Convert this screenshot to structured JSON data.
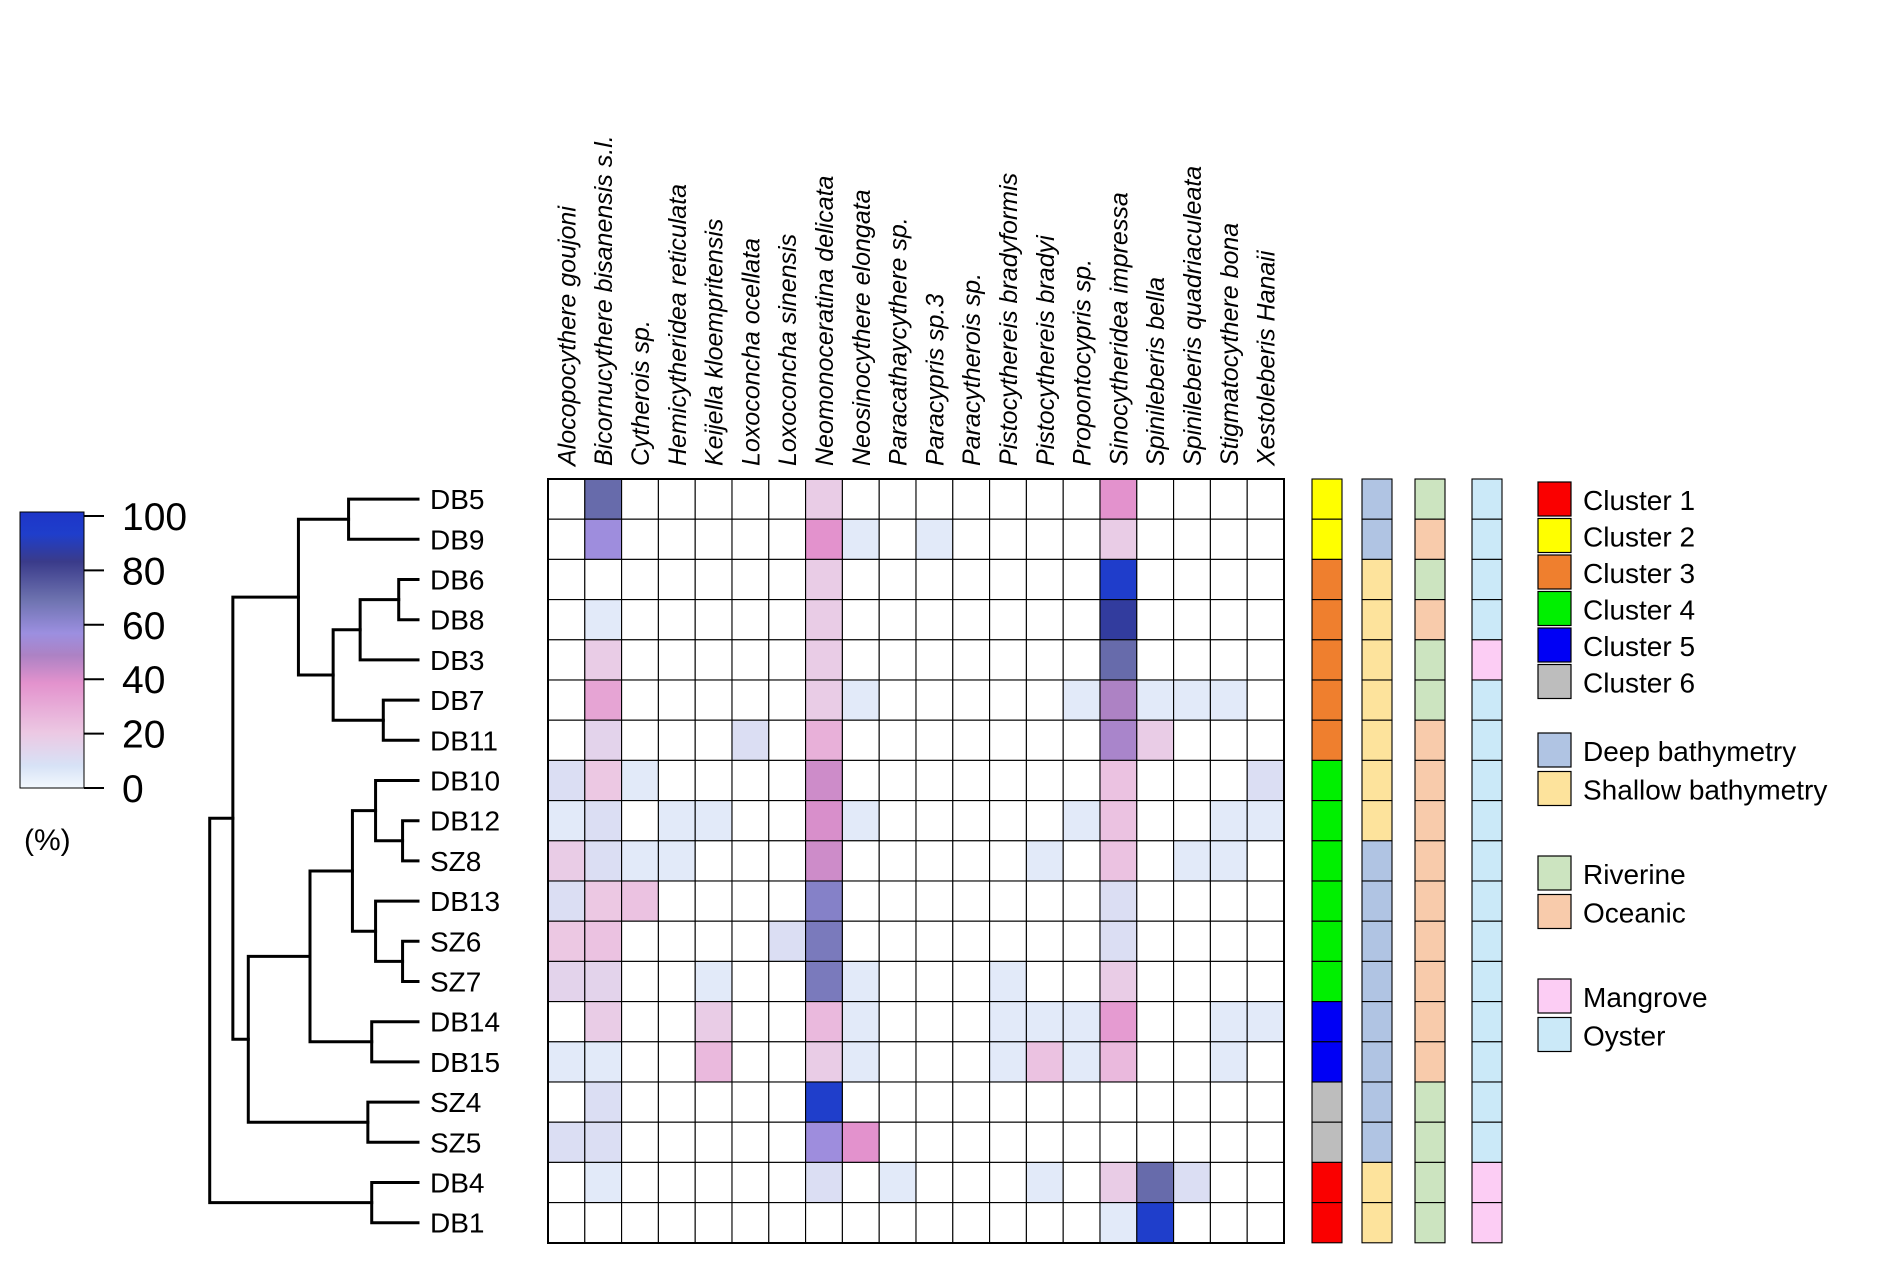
{
  "chart_data": {
    "type": "heatmap",
    "title": "",
    "columns": [
      "Alocopocythere goujoni",
      "Bicornucythere bisanensis s.l.",
      "Cytherois sp.",
      "Hemicytherideа reticulata",
      "Keijella kloempritensis",
      "Loxoconcha ocellata",
      "Loxoconcha sinensis",
      "Neomonoceratina delicata",
      "Neosinocythere elongata",
      "Paracathaycythere sp.",
      "Paracypris sp.3",
      "Paracytherois sp.",
      "Pistocythereis bradyformis",
      "Pistocythereis bradyi",
      "Propontocypris sp.",
      "Sinocytheridea impressa",
      "Spinileberis bella",
      "Spinileberis quadriaculeata",
      "Stigmatocythere bona",
      "Xestoleberis Hanaii"
    ],
    "rows": [
      "DB5",
      "DB9",
      "DB6",
      "DB8",
      "DB3",
      "DB7",
      "DB11",
      "DB10",
      "DB12",
      "SZ8",
      "DB13",
      "SZ6",
      "SZ7",
      "DB14",
      "DB15",
      "SZ4",
      "SZ5",
      "DB4",
      "DB1"
    ],
    "values": [
      [
        0,
        70,
        0,
        0,
        0,
        0,
        0,
        18,
        0,
        0,
        0,
        0,
        0,
        0,
        0,
        38,
        0,
        0,
        0,
        0
      ],
      [
        0,
        55,
        0,
        0,
        0,
        0,
        0,
        38,
        5,
        0,
        5,
        0,
        0,
        0,
        0,
        18,
        0,
        0,
        0,
        0
      ],
      [
        0,
        0,
        0,
        0,
        0,
        0,
        0,
        18,
        0,
        0,
        0,
        0,
        0,
        0,
        0,
        93,
        0,
        0,
        0,
        0
      ],
      [
        0,
        5,
        0,
        0,
        0,
        0,
        0,
        18,
        0,
        0,
        0,
        0,
        0,
        0,
        0,
        85,
        0,
        0,
        0,
        0
      ],
      [
        0,
        18,
        0,
        0,
        0,
        0,
        0,
        18,
        0,
        0,
        0,
        0,
        0,
        0,
        0,
        70,
        0,
        0,
        0,
        0
      ],
      [
        0,
        32,
        0,
        0,
        0,
        0,
        0,
        18,
        5,
        0,
        0,
        0,
        0,
        0,
        5,
        48,
        5,
        5,
        5,
        0
      ],
      [
        0,
        15,
        0,
        0,
        0,
        10,
        0,
        28,
        0,
        0,
        0,
        0,
        0,
        0,
        0,
        50,
        18,
        0,
        0,
        0
      ],
      [
        10,
        20,
        5,
        0,
        0,
        0,
        0,
        42,
        0,
        0,
        0,
        0,
        0,
        0,
        0,
        22,
        0,
        0,
        0,
        10
      ],
      [
        5,
        10,
        0,
        5,
        5,
        0,
        0,
        40,
        5,
        0,
        0,
        0,
        0,
        0,
        5,
        22,
        0,
        0,
        5,
        5
      ],
      [
        18,
        10,
        5,
        5,
        0,
        0,
        0,
        42,
        0,
        0,
        0,
        0,
        0,
        5,
        0,
        22,
        0,
        5,
        5,
        0
      ],
      [
        10,
        20,
        22,
        0,
        0,
        0,
        0,
        62,
        0,
        0,
        0,
        0,
        0,
        0,
        0,
        10,
        0,
        0,
        0,
        0
      ],
      [
        20,
        22,
        0,
        0,
        0,
        0,
        10,
        65,
        0,
        0,
        0,
        0,
        0,
        0,
        0,
        10,
        0,
        0,
        0,
        0
      ],
      [
        15,
        15,
        0,
        0,
        5,
        0,
        0,
        65,
        5,
        0,
        0,
        0,
        5,
        0,
        0,
        18,
        0,
        0,
        0,
        0
      ],
      [
        0,
        18,
        0,
        0,
        18,
        0,
        0,
        25,
        5,
        0,
        0,
        0,
        5,
        5,
        5,
        35,
        0,
        0,
        5,
        5
      ],
      [
        5,
        5,
        0,
        0,
        25,
        0,
        0,
        18,
        5,
        0,
        0,
        0,
        5,
        22,
        5,
        25,
        0,
        0,
        5,
        0
      ],
      [
        0,
        10,
        0,
        0,
        0,
        0,
        0,
        92,
        0,
        0,
        0,
        0,
        0,
        0,
        0,
        0,
        0,
        0,
        0,
        0
      ],
      [
        10,
        10,
        0,
        0,
        0,
        0,
        0,
        55,
        38,
        0,
        0,
        0,
        0,
        0,
        0,
        0,
        0,
        0,
        0,
        0
      ],
      [
        0,
        5,
        0,
        0,
        0,
        0,
        0,
        10,
        0,
        5,
        0,
        0,
        0,
        5,
        0,
        18,
        70,
        10,
        0,
        0
      ],
      [
        0,
        0,
        0,
        0,
        0,
        0,
        0,
        0,
        0,
        0,
        0,
        0,
        0,
        0,
        0,
        5,
        92,
        0,
        0,
        0
      ]
    ],
    "color_scale": {
      "min": 0,
      "max": 100,
      "ticks": [
        "0",
        "20",
        "40",
        "60",
        "80",
        "100"
      ],
      "unit": "(%)",
      "stops": [
        {
          "v": 0,
          "c": "#f3f8fe"
        },
        {
          "v": 8,
          "c": "#d7e2f6"
        },
        {
          "v": 20,
          "c": "#ecc8e3"
        },
        {
          "v": 38,
          "c": "#e392cd"
        },
        {
          "v": 48,
          "c": "#ad82c4"
        },
        {
          "v": 56,
          "c": "#9c8fe0"
        },
        {
          "v": 68,
          "c": "#6e73b0"
        },
        {
          "v": 82,
          "c": "#3a3b8a"
        },
        {
          "v": 92,
          "c": "#1f3ecb"
        },
        {
          "v": 100,
          "c": "#1d35c8"
        }
      ]
    },
    "annotation_strips": [
      {
        "name": "cluster",
        "values": [
          "2",
          "2",
          "3",
          "3",
          "3",
          "3",
          "3",
          "4",
          "4",
          "4",
          "4",
          "4",
          "4",
          "5",
          "5",
          "6",
          "6",
          "1",
          "1"
        ]
      },
      {
        "name": "bathymetry",
        "values": [
          "deep",
          "deep",
          "shallow",
          "shallow",
          "shallow",
          "shallow",
          "shallow",
          "shallow",
          "shallow",
          "deep",
          "deep",
          "deep",
          "deep",
          "deep",
          "deep",
          "deep",
          "deep",
          "shallow",
          "shallow"
        ]
      },
      {
        "name": "influence",
        "values": [
          "riverine",
          "oceanic",
          "riverine",
          "oceanic",
          "riverine",
          "riverine",
          "oceanic",
          "oceanic",
          "oceanic",
          "oceanic",
          "oceanic",
          "oceanic",
          "oceanic",
          "oceanic",
          "oceanic",
          "riverine",
          "riverine",
          "riverine",
          "riverine"
        ]
      },
      {
        "name": "habitat",
        "values": [
          "oyster",
          "oyster",
          "oyster",
          "oyster",
          "mangrove",
          "oyster",
          "oyster",
          "oyster",
          "oyster",
          "oyster",
          "oyster",
          "oyster",
          "oyster",
          "oyster",
          "oyster",
          "oyster",
          "oyster",
          "mangrove",
          "mangrove"
        ]
      }
    ],
    "legend": {
      "groups": [
        [
          {
            "key": "1",
            "label": "Cluster 1",
            "color": "#fa0000"
          },
          {
            "key": "2",
            "label": "Cluster 2",
            "color": "#ffff00"
          },
          {
            "key": "3",
            "label": "Cluster 3",
            "color": "#ef7f2e"
          },
          {
            "key": "4",
            "label": "Cluster 4",
            "color": "#00f000"
          },
          {
            "key": "5",
            "label": "Cluster 5",
            "color": "#0000f5"
          },
          {
            "key": "6",
            "label": "Cluster 6",
            "color": "#bdbdbd"
          }
        ],
        [
          {
            "key": "deep",
            "label": "Deep bathymetry",
            "color": "#b0c4e3"
          },
          {
            "key": "shallow",
            "label": "Shallow bathymetry",
            "color": "#fde39c"
          }
        ],
        [
          {
            "key": "riverine",
            "label": "Riverine",
            "color": "#cce4c0"
          },
          {
            "key": "oceanic",
            "label": "Oceanic",
            "color": "#f8cbab"
          }
        ],
        [
          {
            "key": "mangrove",
            "label": "Mangrove",
            "color": "#fccdf4"
          },
          {
            "key": "oyster",
            "label": "Oyster",
            "color": "#cbe9f8"
          }
        ]
      ]
    },
    "dendrogram": {
      "leaves": [
        "DB5",
        "DB9",
        "DB6",
        "DB8",
        "DB3",
        "DB7",
        "DB11",
        "DB10",
        "DB12",
        "SZ8",
        "DB13",
        "SZ6",
        "SZ7",
        "DB14",
        "DB15",
        "SZ4",
        "SZ5",
        "DB4",
        "DB1"
      ],
      "merges": [
        {
          "a": "L0",
          "b": "L1",
          "h": 0.82
        },
        {
          "a": "L2",
          "b": "L3",
          "h": 0.95
        },
        {
          "a": "N1",
          "b": "L4",
          "h": 0.85
        },
        {
          "a": "L5",
          "b": "L6",
          "h": 0.91
        },
        {
          "a": "N2",
          "b": "N3",
          "h": 0.78
        },
        {
          "a": "N0",
          "b": "N4",
          "h": 0.69
        },
        {
          "a": "L8",
          "b": "L9",
          "h": 0.96
        },
        {
          "a": "L7",
          "b": "N6",
          "h": 0.89
        },
        {
          "a": "L11",
          "b": "L12",
          "h": 0.96
        },
        {
          "a": "L10",
          "b": "N8",
          "h": 0.89
        },
        {
          "a": "N7",
          "b": "N9",
          "h": 0.83
        },
        {
          "a": "L13",
          "b": "L14",
          "h": 0.88
        },
        {
          "a": "N10",
          "b": "N11",
          "h": 0.72
        },
        {
          "a": "L15",
          "b": "L16",
          "h": 0.87
        },
        {
          "a": "N12",
          "b": "N13",
          "h": 0.56
        },
        {
          "a": "N5",
          "b": "N14",
          "h": 0.52
        },
        {
          "a": "L17",
          "b": "L18",
          "h": 0.88
        },
        {
          "a": "N15",
          "b": "N16",
          "h": 0.46
        }
      ]
    }
  }
}
